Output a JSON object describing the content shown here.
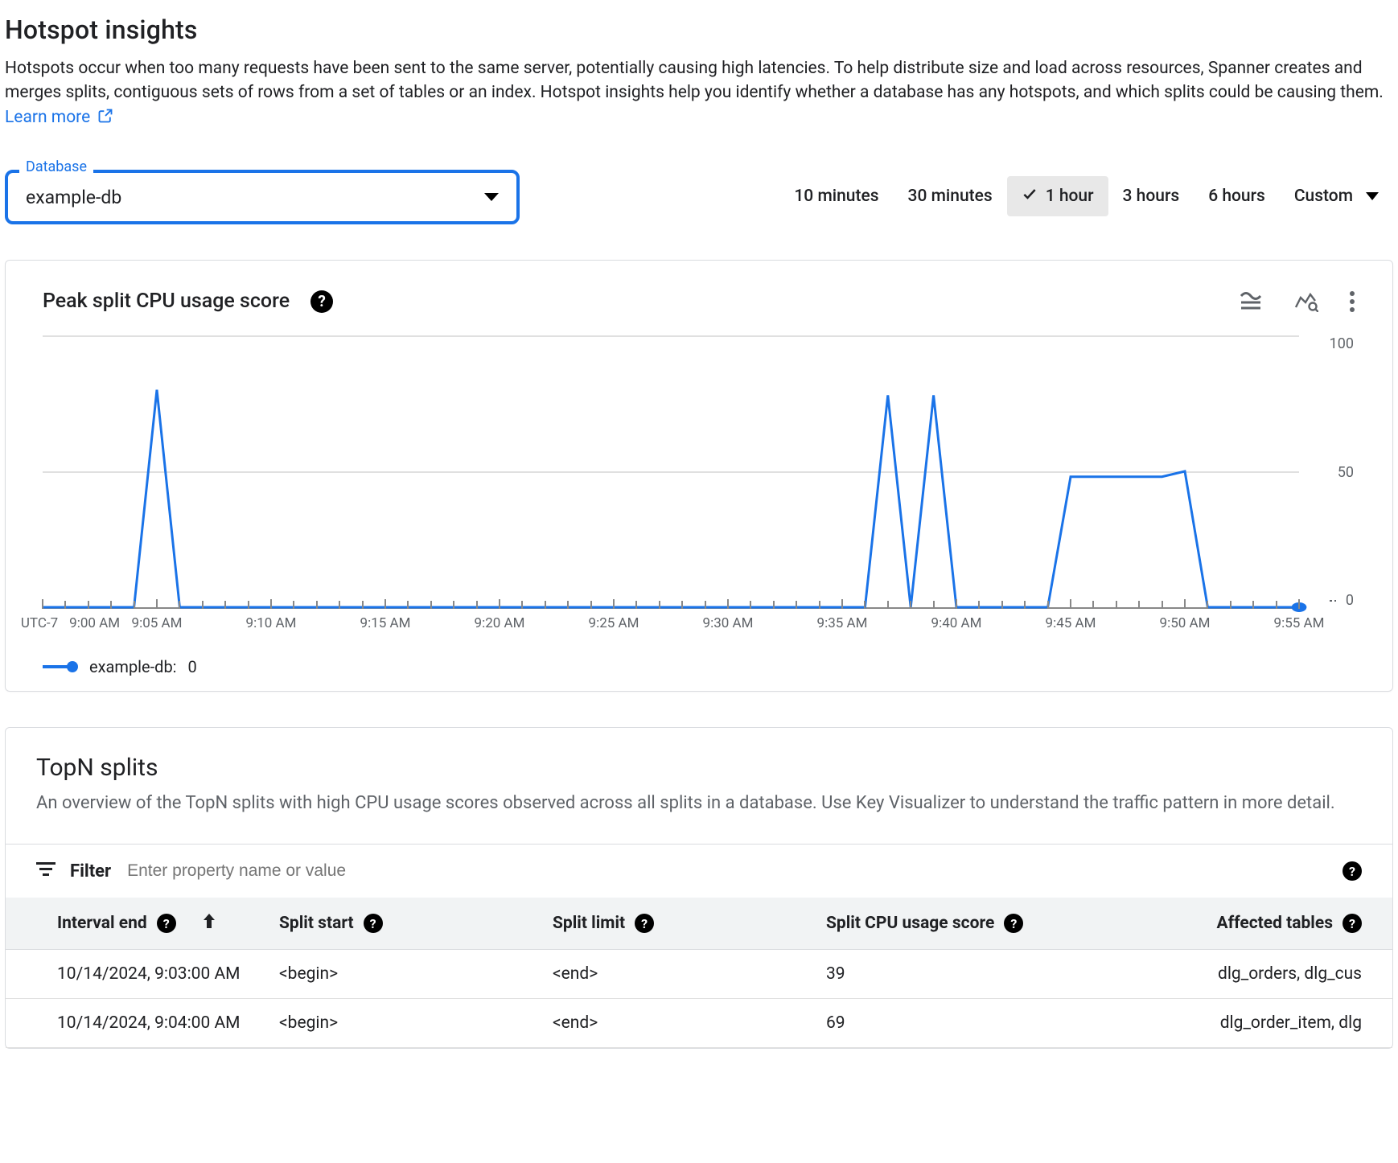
{
  "page": {
    "title": "Hotspot insights",
    "description_pre": "Hotspots occur when too many requests have been sent to the same server, potentially causing high latencies. To help distribute size and load across resources, Spanner creates and merges splits, contiguous sets of rows from a set of tables or an index. Hotspot insights help you identify whether a database has any hotspots, and which splits could be causing them. ",
    "learn_more_label": "Learn more"
  },
  "database_select": {
    "label": "Database",
    "value": "example-db"
  },
  "time_range": {
    "options": [
      "10 minutes",
      "30 minutes",
      "1 hour",
      "3 hours",
      "6 hours",
      "Custom"
    ],
    "selected_index": 2
  },
  "chart": {
    "title": "Peak split CPU usage score",
    "type": "line",
    "line_color": "#1a73e8",
    "line_width": 3,
    "end_marker_radius": 6,
    "background_color": "#ffffff",
    "grid_color": "#e0e0e0",
    "axis_color": "#888888",
    "ylim": [
      0,
      100
    ],
    "ytick_step": 50,
    "y_tick_labels": [
      "100",
      "50",
      "0"
    ],
    "x_timezone_label": "UTC-7",
    "x_domain_minutes": [
      0,
      55
    ],
    "x_tick_labels": [
      "9:00 AM",
      "9:05 AM",
      "9:10 AM",
      "9:15 AM",
      "9:20 AM",
      "9:25 AM",
      "9:30 AM",
      "9:35 AM",
      "9:40 AM",
      "9:45 AM",
      "9:50 AM",
      "9:55 AM"
    ],
    "x_tick_positions": [
      0,
      5,
      10,
      15,
      20,
      25,
      30,
      35,
      40,
      45,
      50,
      55
    ],
    "legend_label": "example-db:",
    "legend_value": "0",
    "series": [
      {
        "m": 0,
        "v": 0
      },
      {
        "m": 3,
        "v": 0
      },
      {
        "m": 4,
        "v": 0
      },
      {
        "m": 5,
        "v": 80
      },
      {
        "m": 6,
        "v": 0
      },
      {
        "m": 35,
        "v": 0
      },
      {
        "m": 36,
        "v": 0
      },
      {
        "m": 37,
        "v": 78
      },
      {
        "m": 38,
        "v": 0
      },
      {
        "m": 39,
        "v": 78
      },
      {
        "m": 40,
        "v": 0
      },
      {
        "m": 44,
        "v": 0
      },
      {
        "m": 45,
        "v": 48
      },
      {
        "m": 49,
        "v": 48
      },
      {
        "m": 50,
        "v": 50
      },
      {
        "m": 51,
        "v": 0
      },
      {
        "m": 55,
        "v": 0
      }
    ]
  },
  "topn": {
    "title": "TopN splits",
    "description": "An overview of the TopN splits with high CPU usage scores observed across all splits in a database. Use Key Visualizer to understand the traffic pattern in more detail.",
    "filter_label": "Filter",
    "filter_placeholder": "Enter property name or value",
    "columns": {
      "interval_end": "Interval end",
      "split_start": "Split start",
      "split_limit": "Split limit",
      "split_cpu_score": "Split CPU usage score",
      "affected_tables": "Affected tables"
    },
    "rows": [
      {
        "interval_end": "10/14/2024, 9:03:00 AM",
        "split_start": "<begin>",
        "split_limit": "<end>",
        "score": "39",
        "tables": "dlg_orders, dlg_cus"
      },
      {
        "interval_end": "10/14/2024, 9:04:00 AM",
        "split_start": "<begin>",
        "split_limit": "<end>",
        "score": "69",
        "tables": "dlg_order_item, dlg"
      }
    ]
  }
}
